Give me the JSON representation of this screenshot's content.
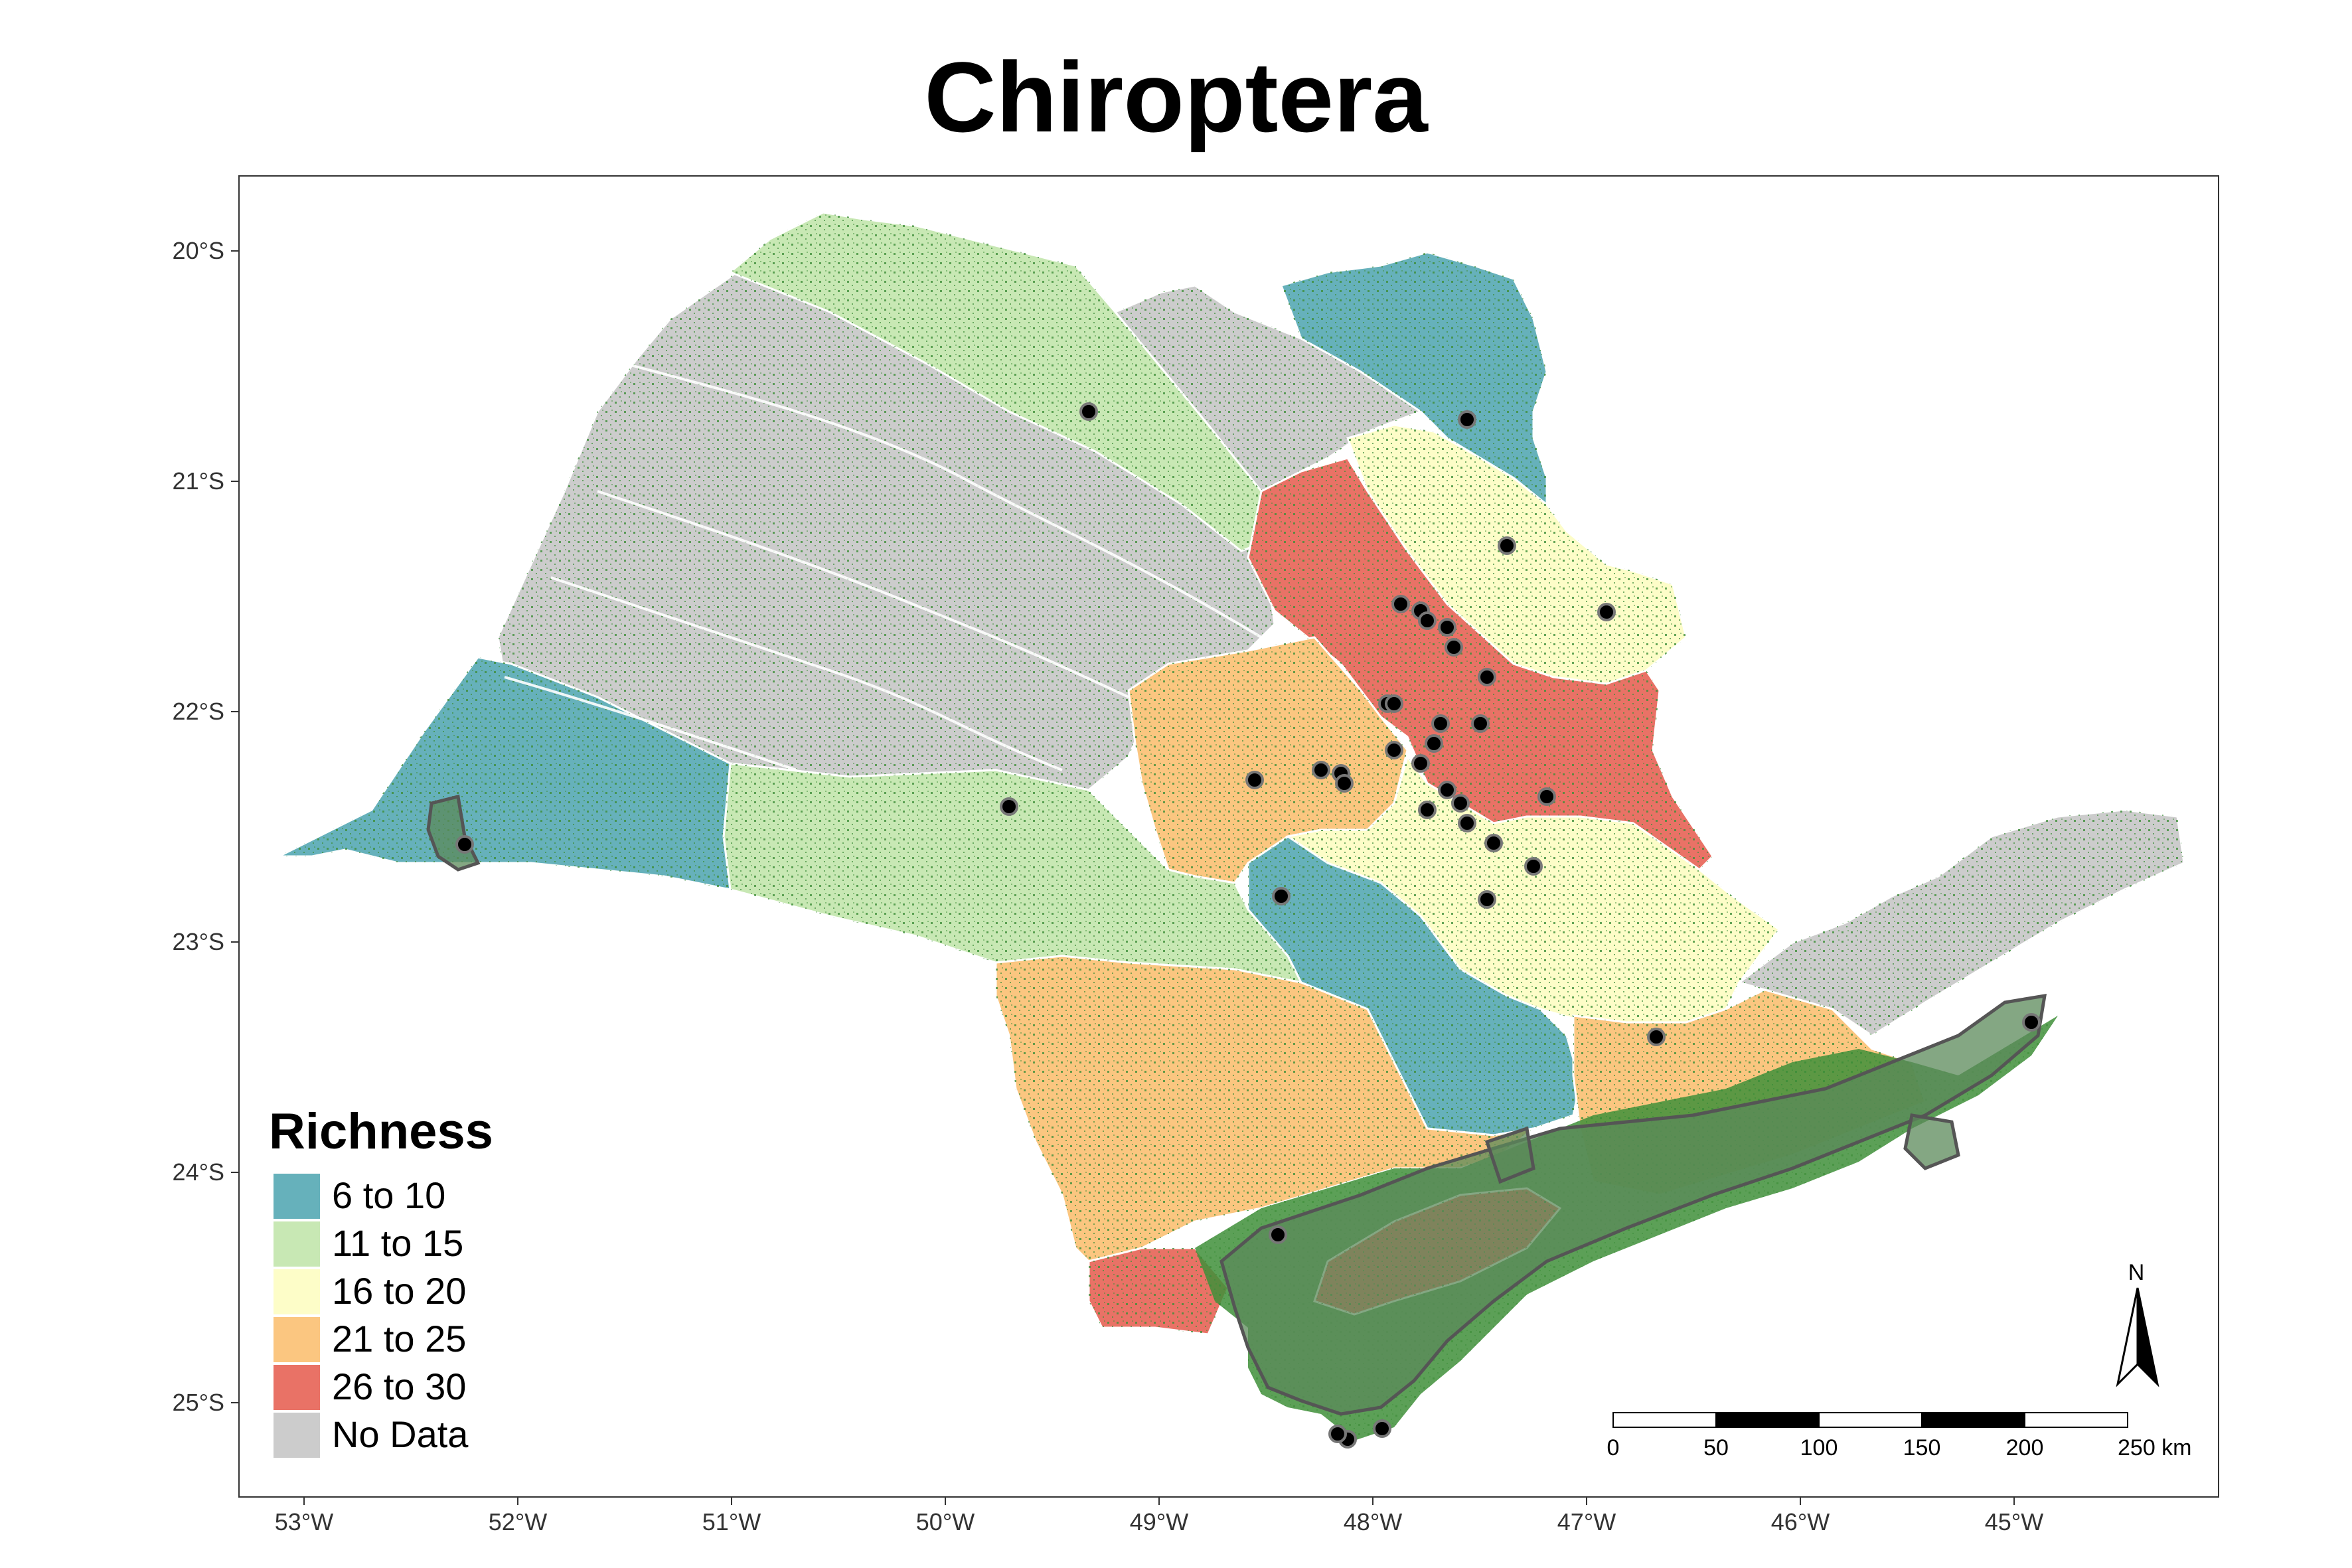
{
  "title": "Chiroptera",
  "legend": {
    "title": "Richness",
    "items": [
      {
        "label": "6 to 10",
        "color": "#66b1bb"
      },
      {
        "label": "11 to 15",
        "color": "#c8e8b4"
      },
      {
        "label": "16 to 20",
        "color": "#fdfdc8"
      },
      {
        "label": "21 to 25",
        "color": "#fbc680"
      },
      {
        "label": "26 to 30",
        "color": "#e97266"
      },
      {
        "label": "No Data",
        "color": "#cccccc"
      }
    ]
  },
  "axes": {
    "x_ticks": [
      "53°W",
      "52°W",
      "51°W",
      "50°W",
      "49°W",
      "48°W",
      "47°W",
      "46°W",
      "45°W"
    ],
    "y_ticks": [
      "20°S",
      "21°S",
      "22°S",
      "23°S",
      "24°S",
      "25°S"
    ]
  },
  "scale_bar": {
    "labels": [
      "0",
      "50",
      "100",
      "150",
      "200",
      "250 km"
    ]
  },
  "north_arrow": {
    "label": "N"
  },
  "colors": {
    "forest_green": "#3f8f3a",
    "protected_area": "#5b8a5a",
    "sample_point": "#000000"
  }
}
